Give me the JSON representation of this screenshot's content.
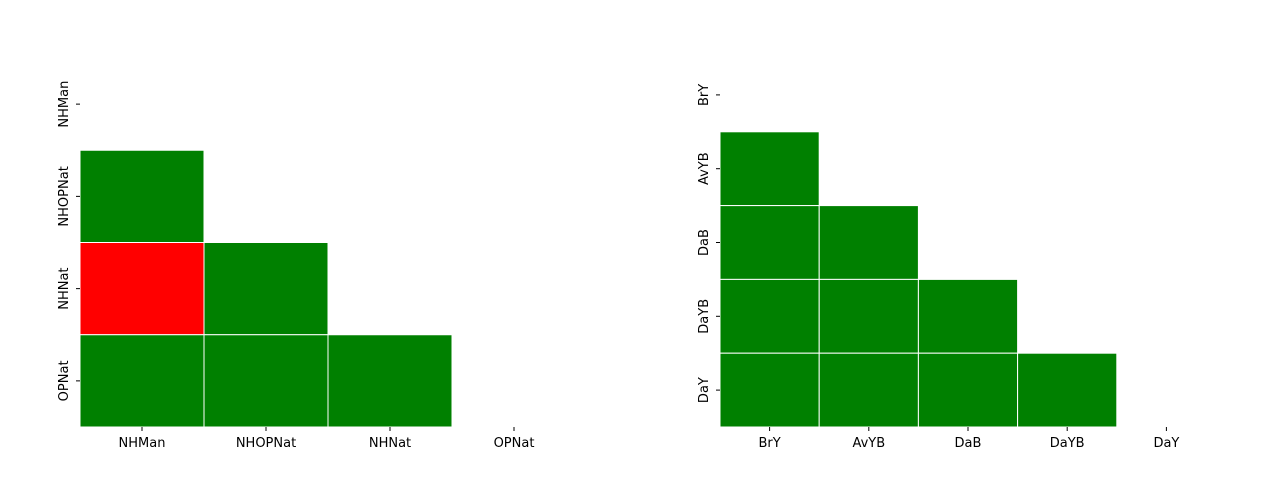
{
  "colors": {
    "ok": "#008000",
    "flag": "#ff0000",
    "grid": "#ffffff",
    "tick": "#000000"
  },
  "chart_data": [
    {
      "type": "heatmap",
      "title": "",
      "xlabel": "",
      "ylabel": "",
      "layout": "lower-triangle",
      "grid": false,
      "x_labels": [
        "NHMan",
        "NHOPNat",
        "NHNat",
        "OPNat"
      ],
      "y_labels": [
        "NHMan",
        "NHOPNat",
        "NHNat",
        "OPNat"
      ],
      "cells": [
        [
          null,
          null,
          null,
          null
        ],
        [
          "green",
          null,
          null,
          null
        ],
        [
          "red",
          "green",
          null,
          null
        ],
        [
          "green",
          "green",
          "green",
          null
        ]
      ]
    },
    {
      "type": "heatmap",
      "title": "",
      "xlabel": "",
      "ylabel": "",
      "layout": "lower-triangle",
      "grid": false,
      "x_labels": [
        "BrY",
        "AvYB",
        "DaB",
        "DaYB",
        "DaY"
      ],
      "y_labels": [
        "BrY",
        "AvYB",
        "DaB",
        "DaYB",
        "DaY"
      ],
      "cells": [
        [
          null,
          null,
          null,
          null,
          null
        ],
        [
          "green",
          null,
          null,
          null,
          null
        ],
        [
          "green",
          "green",
          null,
          null,
          null
        ],
        [
          "green",
          "green",
          "green",
          null,
          null
        ],
        [
          "green",
          "green",
          "green",
          "green",
          null
        ]
      ]
    }
  ]
}
